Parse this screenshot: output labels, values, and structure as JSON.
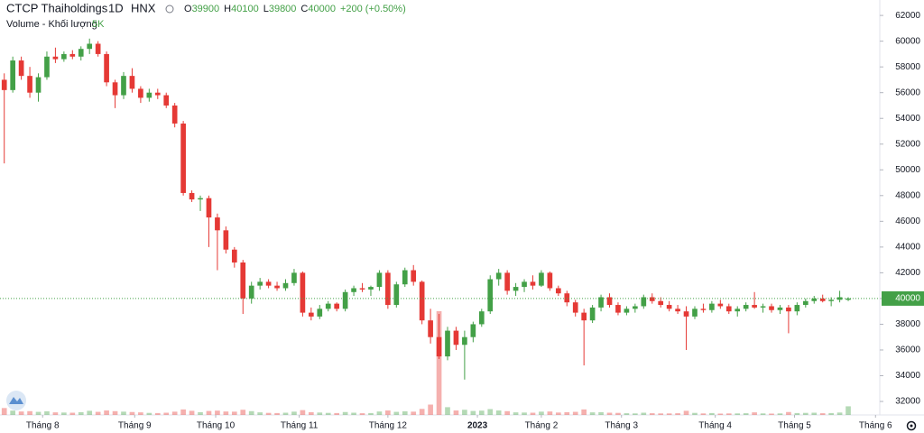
{
  "chart_data": {
    "type": "candlestick",
    "title": "CTCP Thaiholdings",
    "interval": "1D",
    "exchange": "HNX",
    "legend": [
      {
        "label": "O",
        "value": 39900
      },
      {
        "label": "H",
        "value": 40100
      },
      {
        "label": "L",
        "value": 39800
      },
      {
        "label": "C",
        "value": 40000
      }
    ],
    "change": "+200 (+0.50%)",
    "volume_title": "Volume - Khối lượng",
    "volume_last": {
      "value": 5000,
      "label": "5K"
    },
    "up_color": "#43a047",
    "down_color": "#e53935",
    "grid": false,
    "ylim": [
      30950,
      63200
    ],
    "yticks": [
      32000,
      34000,
      36000,
      38000,
      40000,
      42000,
      44000,
      46000,
      48000,
      50000,
      52000,
      54000,
      56000,
      58000,
      60000,
      62000
    ],
    "xlim": [
      -0.5,
      102.7
    ],
    "xticks": [
      {
        "value": 4.5,
        "label": "Tháng 8"
      },
      {
        "value": 15.3,
        "label": "Tháng 9"
      },
      {
        "value": 24.8,
        "label": "Tháng 10"
      },
      {
        "value": 34.6,
        "label": "Tháng 11"
      },
      {
        "value": 45,
        "label": "Tháng 12"
      },
      {
        "value": 55.5,
        "label": "2023"
      },
      {
        "value": 63,
        "label": "Tháng 2"
      },
      {
        "value": 72.4,
        "label": "Tháng 3"
      },
      {
        "value": 83.4,
        "label": "Tháng 4"
      },
      {
        "value": 92.7,
        "label": "Tháng 5"
      },
      {
        "value": 102.2,
        "label": "Tháng 6"
      }
    ],
    "candles": [
      [
        57000,
        57500,
        50500,
        56200,
        4000
      ],
      [
        56200,
        58800,
        56000,
        58500,
        2500
      ],
      [
        58500,
        58800,
        57000,
        57300,
        2000
      ],
      [
        57300,
        58000,
        55600,
        56000,
        2200
      ],
      [
        56000,
        57500,
        55300,
        57200,
        1800
      ],
      [
        57200,
        59200,
        57000,
        58800,
        2100
      ],
      [
        58800,
        59500,
        58300,
        58600,
        1500
      ],
      [
        58600,
        59200,
        58400,
        59000,
        1400
      ],
      [
        59000,
        59300,
        58600,
        58800,
        1300
      ],
      [
        58800,
        59600,
        58500,
        59400,
        1600
      ],
      [
        59400,
        60200,
        59000,
        59800,
        2400
      ],
      [
        59800,
        60000,
        58800,
        59000,
        1800
      ],
      [
        59000,
        59200,
        56500,
        56800,
        2600
      ],
      [
        56800,
        57000,
        54800,
        55800,
        2200
      ],
      [
        55800,
        57600,
        55500,
        57300,
        1900
      ],
      [
        57300,
        57900,
        56000,
        56300,
        1700
      ],
      [
        56300,
        56500,
        55200,
        55600,
        1500
      ],
      [
        55600,
        56300,
        55300,
        56000,
        1200
      ],
      [
        56000,
        56300,
        55500,
        55800,
        1100
      ],
      [
        55800,
        56000,
        54800,
        55000,
        1300
      ],
      [
        55000,
        55200,
        53300,
        53600,
        1900
      ],
      [
        53600,
        53800,
        48000,
        48200,
        3200
      ],
      [
        48200,
        48400,
        47500,
        47700,
        2400
      ],
      [
        47700,
        48000,
        46800,
        47800,
        1600
      ],
      [
        47800,
        48000,
        44000,
        46300,
        2300
      ],
      [
        46300,
        46600,
        42200,
        45300,
        2500
      ],
      [
        45300,
        45600,
        43500,
        43800,
        2000
      ],
      [
        43800,
        44000,
        42400,
        42800,
        1900
      ],
      [
        42800,
        43000,
        38800,
        40000,
        3000
      ],
      [
        40000,
        41300,
        39600,
        41000,
        2200
      ],
      [
        41000,
        41600,
        40700,
        41300,
        1500
      ],
      [
        41300,
        41500,
        40800,
        41000,
        1200
      ],
      [
        41000,
        41300,
        40600,
        40800,
        1100
      ],
      [
        40800,
        41500,
        40600,
        41200,
        1300
      ],
      [
        41200,
        42300,
        41000,
        42000,
        1900
      ],
      [
        42000,
        42100,
        38600,
        38900,
        2800
      ],
      [
        38900,
        39300,
        38300,
        38600,
        1600
      ],
      [
        38600,
        39500,
        38400,
        39200,
        1400
      ],
      [
        39200,
        39800,
        39000,
        39600,
        1200
      ],
      [
        39600,
        39700,
        39000,
        39200,
        1100
      ],
      [
        39200,
        40700,
        39000,
        40500,
        1700
      ],
      [
        40500,
        41000,
        40200,
        40800,
        1300
      ],
      [
        40800,
        41200,
        40500,
        40700,
        1000
      ],
      [
        40700,
        41000,
        40200,
        40900,
        1100
      ],
      [
        40900,
        42200,
        40600,
        42000,
        2000
      ],
      [
        42000,
        42200,
        39200,
        39500,
        2600
      ],
      [
        39500,
        41300,
        39300,
        41100,
        1800
      ],
      [
        41100,
        42400,
        40900,
        42200,
        2100
      ],
      [
        42200,
        42600,
        41000,
        41300,
        1900
      ],
      [
        41300,
        41400,
        38000,
        38300,
        3500
      ],
      [
        38300,
        39200,
        36500,
        37000,
        6000
      ],
      [
        37000,
        38800,
        35300,
        35500,
        60000
      ],
      [
        35500,
        37800,
        35200,
        37500,
        4500
      ],
      [
        37500,
        37800,
        36000,
        36400,
        2600
      ],
      [
        36400,
        37500,
        33700,
        37000,
        3000
      ],
      [
        37000,
        38200,
        36600,
        38000,
        2300
      ],
      [
        38000,
        39200,
        37800,
        39000,
        2500
      ],
      [
        39000,
        41800,
        38800,
        41500,
        3400
      ],
      [
        41500,
        42300,
        41000,
        42000,
        2600
      ],
      [
        42000,
        42200,
        40300,
        40600,
        2200
      ],
      [
        40600,
        41200,
        40200,
        40900,
        1500
      ],
      [
        40900,
        41500,
        40500,
        41300,
        1400
      ],
      [
        41300,
        41800,
        40700,
        41000,
        1300
      ],
      [
        41000,
        42200,
        40900,
        42000,
        1900
      ],
      [
        42000,
        42100,
        40600,
        40800,
        2000
      ],
      [
        40800,
        41000,
        40200,
        40400,
        1400
      ],
      [
        40400,
        40600,
        39400,
        39700,
        1600
      ],
      [
        39700,
        39900,
        38600,
        38900,
        1800
      ],
      [
        38900,
        39200,
        34800,
        38300,
        3200
      ],
      [
        38300,
        39500,
        38100,
        39300,
        1500
      ],
      [
        39300,
        40300,
        39000,
        40100,
        1600
      ],
      [
        40100,
        40400,
        39300,
        39500,
        1300
      ],
      [
        39500,
        39700,
        38700,
        38900,
        1200
      ],
      [
        38900,
        39400,
        38700,
        39200,
        1000
      ],
      [
        39200,
        39600,
        38900,
        39400,
        900
      ],
      [
        39400,
        40300,
        39200,
        40100,
        1300
      ],
      [
        40100,
        40400,
        39600,
        39800,
        1000
      ],
      [
        39800,
        40100,
        39300,
        39500,
        900
      ],
      [
        39500,
        39800,
        39000,
        39200,
        900
      ],
      [
        39200,
        39500,
        38800,
        39000,
        1000
      ],
      [
        39000,
        39400,
        36000,
        38600,
        2400
      ],
      [
        38600,
        39400,
        38400,
        39200,
        1200
      ],
      [
        39200,
        39600,
        38900,
        39100,
        900
      ],
      [
        39100,
        39800,
        38900,
        39600,
        1100
      ],
      [
        39600,
        39900,
        39200,
        39400,
        800
      ],
      [
        39400,
        39600,
        38800,
        39000,
        900
      ],
      [
        39000,
        39400,
        38600,
        39200,
        900
      ],
      [
        39200,
        39700,
        39000,
        39500,
        1000
      ],
      [
        39500,
        40500,
        39200,
        39300,
        1500
      ],
      [
        39300,
        39600,
        38900,
        39400,
        900
      ],
      [
        39400,
        39600,
        38900,
        39100,
        800
      ],
      [
        39100,
        39500,
        38800,
        39300,
        900
      ],
      [
        39300,
        39500,
        37300,
        39000,
        1700
      ],
      [
        39000,
        39700,
        38700,
        39500,
        1100
      ],
      [
        39500,
        40000,
        39300,
        39800,
        1200
      ],
      [
        39800,
        40200,
        39600,
        40000,
        1300
      ],
      [
        40000,
        40300,
        39700,
        39800,
        1000
      ],
      [
        39800,
        40100,
        39400,
        39900,
        1100
      ],
      [
        39900,
        40600,
        39700,
        40100,
        1400
      ],
      [
        39900,
        40100,
        39800,
        40000,
        5000
      ]
    ]
  }
}
